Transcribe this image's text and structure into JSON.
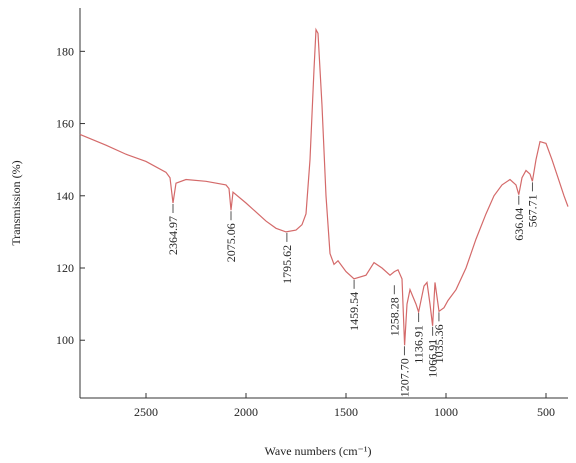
{
  "chart_data": {
    "type": "line",
    "xlabel": "Wave numbers (cm⁻¹)",
    "ylabel": "Transmission (%)",
    "color": "#d46a6a",
    "x": [
      2830,
      2700,
      2600,
      2500,
      2400,
      2380,
      2365,
      2350,
      2300,
      2200,
      2100,
      2085,
      2075,
      2065,
      2000,
      1900,
      1850,
      1800,
      1750,
      1720,
      1700,
      1680,
      1660,
      1650,
      1640,
      1620,
      1600,
      1580,
      1560,
      1540,
      1500,
      1460,
      1400,
      1360,
      1320,
      1280,
      1258,
      1240,
      1220,
      1207,
      1195,
      1180,
      1150,
      1137,
      1110,
      1095,
      1080,
      1067,
      1055,
      1040,
      1035,
      1010,
      990,
      950,
      900,
      850,
      800,
      760,
      720,
      680,
      650,
      636,
      620,
      600,
      580,
      568,
      550,
      530,
      500,
      470,
      440,
      410,
      390
    ],
    "values": [
      157,
      154,
      151.5,
      149.5,
      146.5,
      145,
      138,
      143.5,
      144.5,
      144,
      143,
      142,
      136,
      141,
      138,
      133,
      131,
      130,
      130.5,
      132,
      135,
      150,
      175,
      186,
      185,
      165,
      140,
      124,
      121,
      122,
      119,
      117,
      118,
      121.5,
      120,
      118,
      119,
      119.5,
      117,
      98.6,
      110,
      114,
      110,
      107.8,
      115,
      116,
      110,
      104,
      116,
      110,
      108,
      109,
      111,
      114,
      120,
      128,
      135,
      140,
      143,
      144.5,
      143,
      140.3,
      145,
      147,
      146,
      144,
      150,
      155,
      154.5,
      150,
      145,
      140,
      137
    ],
    "xlim": [
      2830,
      390
    ],
    "ylim": [
      84,
      192
    ],
    "xticks": [
      2500,
      2000,
      1500,
      1000,
      500
    ],
    "yticks": [
      100,
      120,
      140,
      160,
      180
    ],
    "annotations": [
      {
        "text": "2364.97",
        "x": 2364.97,
        "y": 138
      },
      {
        "text": "2075.06",
        "x": 2075.06,
        "y": 136
      },
      {
        "text": "1795.62",
        "x": 1795.62,
        "y": 130
      },
      {
        "text": "1459.54",
        "x": 1459.54,
        "y": 117
      },
      {
        "text": "1258.28",
        "x": 1258.28,
        "y": 115.5
      },
      {
        "text": "1207.70",
        "x": 1207.7,
        "y": 98.6
      },
      {
        "text": "1136.91",
        "x": 1136.91,
        "y": 107.8
      },
      {
        "text": "1066.91",
        "x": 1066.91,
        "y": 104
      },
      {
        "text": "1035.36",
        "x": 1035.36,
        "y": 108
      },
      {
        "text": "636.04",
        "x": 636.04,
        "y": 140.3
      },
      {
        "text": "567.71",
        "x": 567.71,
        "y": 144
      }
    ]
  }
}
